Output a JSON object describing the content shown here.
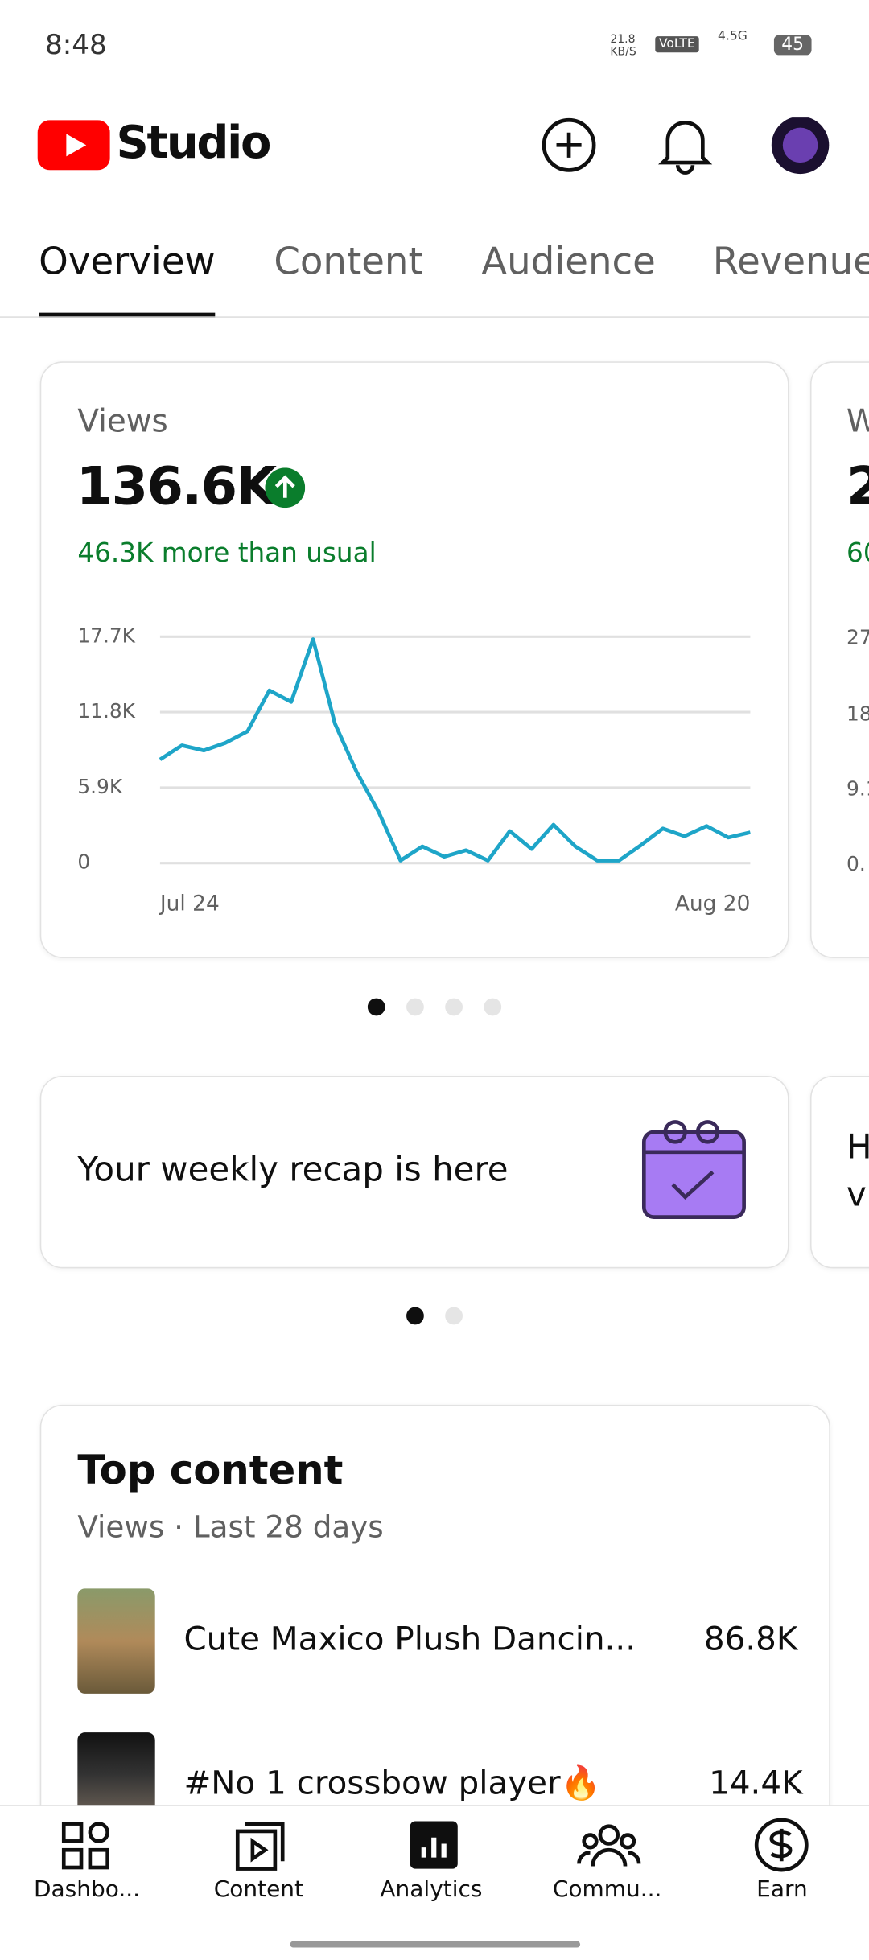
{
  "status_bar": {
    "time": "8:48",
    "speed": "21.8 KB/S",
    "volte": "VoLTE",
    "network": "4.5G",
    "battery": "45"
  },
  "header": {
    "app_name": "Studio"
  },
  "tabs": [
    "Overview",
    "Content",
    "Audience",
    "Revenue"
  ],
  "views_card": {
    "title": "Views",
    "total": "136.6K",
    "delta": "46.3K more than usual",
    "chart": {
      "type": "line",
      "color": "#1ea5c8",
      "categories": [
        "Jul 24",
        null,
        null,
        null,
        null,
        null,
        null,
        null,
        null,
        null,
        null,
        null,
        null,
        null,
        null,
        null,
        null,
        null,
        null,
        null,
        null,
        null,
        null,
        null,
        null,
        null,
        null,
        "Aug 20"
      ],
      "values": [
        8100,
        9200,
        8800,
        9400,
        10300,
        13500,
        12600,
        17500,
        10900,
        7100,
        4000,
        200,
        1300,
        500,
        1000,
        200,
        2500,
        1100,
        3000,
        1300,
        200,
        200,
        1400,
        2700,
        2100,
        2900,
        2000,
        2400
      ],
      "ylim": [
        0,
        17700
      ],
      "yticks": [
        0,
        {
          "value": 5900,
          "label": "5.9K"
        },
        {
          "value": 11800,
          "label": "11.8K"
        },
        {
          "value": 17700,
          "label": "17.7K"
        }
      ],
      "grid": true
    }
  },
  "peek_card": {
    "title": "W",
    "total": "2",
    "delta": "60",
    "ticks": [
      "27",
      "18",
      "9.1",
      "0."
    ]
  },
  "recap_card": {
    "text": "Your weekly recap is here",
    "peek_line1": "H",
    "peek_line2": "v"
  },
  "top_content": {
    "title": "Top content",
    "subtitle": "Views · Last 28 days",
    "items": [
      {
        "title": "Cute Maxico Plush Dancin...",
        "value": "86.8K"
      },
      {
        "title": "#No 1 crossbow player🔥",
        "value": "14.4K"
      }
    ]
  },
  "nav": [
    "Dashbo...",
    "Content",
    "Analytics",
    "Commu...",
    "Earn"
  ]
}
